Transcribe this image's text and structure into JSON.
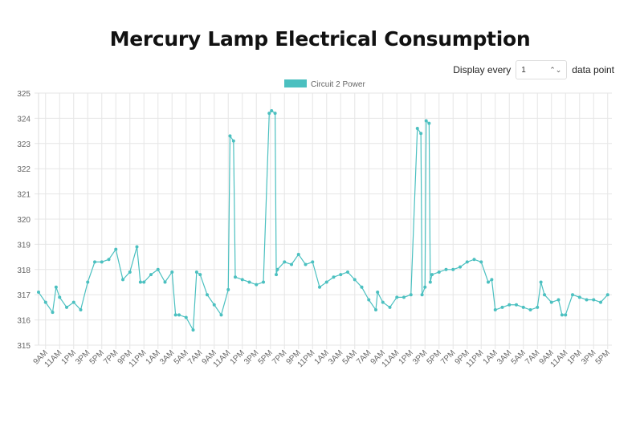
{
  "controls": {
    "display_prefix": "Display every",
    "step_value": "1",
    "display_suffix": "data point",
    "stepper_icon": "up-down-chevron-icon"
  },
  "chart_data": {
    "type": "line",
    "title": "Mercury Lamp Electrical Consumption",
    "xlabel": "",
    "ylabel": "",
    "ylim": [
      315,
      325
    ],
    "yticks": [
      "315",
      "316",
      "317",
      "318",
      "319",
      "320",
      "321",
      "322",
      "323",
      "324",
      "325"
    ],
    "xticks": [
      "9AM",
      "11AM",
      "1PM",
      "3PM",
      "5PM",
      "7PM",
      "9PM",
      "11PM",
      "1AM",
      "3AM",
      "5AM",
      "7AM",
      "9AM",
      "11AM",
      "1PM",
      "3PM",
      "5PM",
      "7PM",
      "9PM",
      "11PM",
      "1AM",
      "3AM",
      "5AM",
      "7AM",
      "9AM",
      "11AM",
      "1PM",
      "3PM",
      "5PM",
      "7PM",
      "9PM",
      "11PM",
      "1AM",
      "3AM",
      "5AM",
      "7AM",
      "9AM",
      "11AM",
      "1PM",
      "3PM",
      "5PM"
    ],
    "grid": true,
    "legend": "top",
    "series": [
      {
        "name": "Circuit 2 Power",
        "color": "#4bc0c0",
        "points": [
          [
            "8AM",
            317.1
          ],
          [
            "9AM",
            316.7
          ],
          [
            "10AM",
            316.3
          ],
          [
            "10:30AM",
            317.3
          ],
          [
            "11AM",
            316.9
          ],
          [
            "12PM",
            316.5
          ],
          [
            "1PM",
            316.7
          ],
          [
            "2PM",
            316.4
          ],
          [
            "3PM",
            317.5
          ],
          [
            "4PM",
            318.3
          ],
          [
            "5PM",
            318.3
          ],
          [
            "6PM",
            318.4
          ],
          [
            "7PM",
            318.8
          ],
          [
            "8PM",
            317.6
          ],
          [
            "9PM",
            317.9
          ],
          [
            "10PM",
            318.9
          ],
          [
            "10:30PM",
            317.5
          ],
          [
            "11PM",
            317.5
          ],
          [
            "12AM",
            317.8
          ],
          [
            "1AM",
            318.0
          ],
          [
            "2AM",
            317.5
          ],
          [
            "3AM",
            317.9
          ],
          [
            "3:30AM",
            316.2
          ],
          [
            "4AM",
            316.2
          ],
          [
            "5AM",
            316.1
          ],
          [
            "6AM",
            315.6
          ],
          [
            "6:30AM",
            317.9
          ],
          [
            "7AM",
            317.8
          ],
          [
            "8AM",
            317.0
          ],
          [
            "9AM",
            316.6
          ],
          [
            "10AM",
            316.2
          ],
          [
            "11AM",
            317.2
          ],
          [
            "11:15AM",
            323.3
          ],
          [
            "11:45AM",
            323.1
          ],
          [
            "12PM",
            317.7
          ],
          [
            "1PM",
            317.6
          ],
          [
            "2PM",
            317.5
          ],
          [
            "3PM",
            317.4
          ],
          [
            "4PM",
            317.5
          ],
          [
            "4:50PM",
            324.2
          ],
          [
            "5:10PM",
            324.3
          ],
          [
            "5:40PM",
            324.2
          ],
          [
            "5:50PM",
            317.8
          ],
          [
            "6PM",
            318.0
          ],
          [
            "7PM",
            318.3
          ],
          [
            "8PM",
            318.2
          ],
          [
            "9PM",
            318.6
          ],
          [
            "10PM",
            318.2
          ],
          [
            "11PM",
            318.3
          ],
          [
            "12AM",
            317.3
          ],
          [
            "1AM",
            317.5
          ],
          [
            "2AM",
            317.7
          ],
          [
            "3AM",
            317.8
          ],
          [
            "4AM",
            317.9
          ],
          [
            "5AM",
            317.6
          ],
          [
            "6AM",
            317.3
          ],
          [
            "7AM",
            316.8
          ],
          [
            "8AM",
            316.4
          ],
          [
            "8:15AM",
            317.1
          ],
          [
            "9AM",
            316.7
          ],
          [
            "10AM",
            316.5
          ],
          [
            "11AM",
            316.9
          ],
          [
            "12PM",
            316.9
          ],
          [
            "1PM",
            317.0
          ],
          [
            "1:55PM",
            323.6
          ],
          [
            "2:25PM",
            323.4
          ],
          [
            "2:35PM",
            317.0
          ],
          [
            "3PM",
            317.3
          ],
          [
            "3:10PM",
            323.9
          ],
          [
            "3:35PM",
            323.8
          ],
          [
            "3:45PM",
            317.5
          ],
          [
            "4PM",
            317.8
          ],
          [
            "5PM",
            317.9
          ],
          [
            "6PM",
            318.0
          ],
          [
            "7PM",
            318.0
          ],
          [
            "8PM",
            318.1
          ],
          [
            "9PM",
            318.3
          ],
          [
            "10PM",
            318.4
          ],
          [
            "11PM",
            318.3
          ],
          [
            "12AM",
            317.5
          ],
          [
            "12:30AM",
            317.6
          ],
          [
            "1AM",
            316.4
          ],
          [
            "2AM",
            316.5
          ],
          [
            "3AM",
            316.6
          ],
          [
            "4AM",
            316.6
          ],
          [
            "5AM",
            316.5
          ],
          [
            "6AM",
            316.4
          ],
          [
            "7AM",
            316.5
          ],
          [
            "7:30AM",
            317.5
          ],
          [
            "8AM",
            317.0
          ],
          [
            "9AM",
            316.7
          ],
          [
            "10AM",
            316.8
          ],
          [
            "10:30AM",
            316.2
          ],
          [
            "11AM",
            316.2
          ],
          [
            "12PM",
            317.0
          ],
          [
            "1PM",
            316.9
          ],
          [
            "2PM",
            316.8
          ],
          [
            "3PM",
            316.8
          ],
          [
            "4PM",
            316.7
          ],
          [
            "5PM",
            317.0
          ]
        ]
      }
    ]
  }
}
